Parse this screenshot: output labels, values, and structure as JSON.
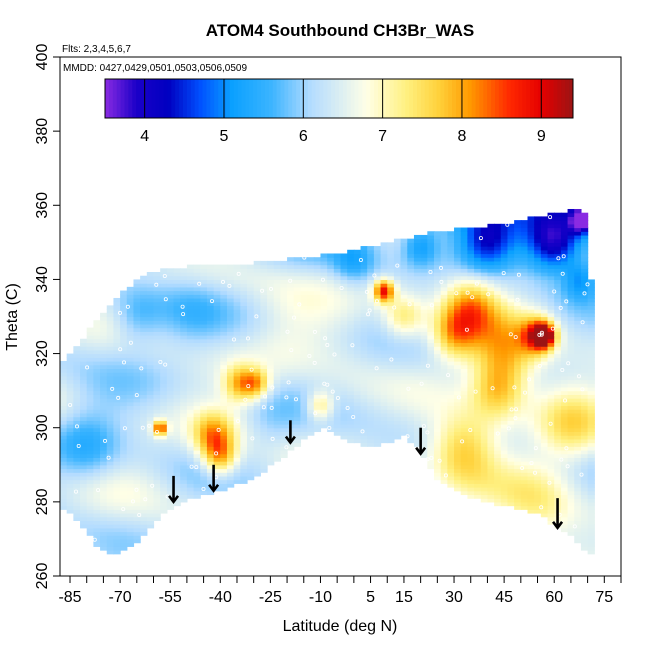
{
  "chart_data": {
    "type": "heatmap",
    "title": "ATOM4 Southbound CH3Br_WAS",
    "flights_note": "Flts: 2,3,4,5,6,7",
    "dates_note": "MMDD: 0427,0429,0501,0503,0506,0509",
    "xlabel": "Latitude (deg N)",
    "ylabel": "Theta (C)",
    "xlim": [
      -88,
      80
    ],
    "ylim": [
      260,
      400
    ],
    "x_ticks": [
      -85,
      -70,
      -55,
      -40,
      -25,
      -10,
      5,
      15,
      30,
      45,
      60,
      75
    ],
    "y_ticks": [
      260,
      280,
      300,
      320,
      340,
      360,
      380,
      400
    ],
    "colorbar": {
      "range": [
        3.5,
        9.4
      ],
      "ticks": [
        4,
        5,
        6,
        7,
        8,
        9
      ],
      "stops": [
        {
          "v": 3.5,
          "c": "#8a2be2"
        },
        {
          "v": 3.9,
          "c": "#1a00c8"
        },
        {
          "v": 4.3,
          "c": "#0000c0"
        },
        {
          "v": 4.7,
          "c": "#0050ff"
        },
        {
          "v": 5.1,
          "c": "#0aa0ff"
        },
        {
          "v": 5.6,
          "c": "#3cb4ff"
        },
        {
          "v": 6.1,
          "c": "#b4dcff"
        },
        {
          "v": 6.8,
          "c": "#ffffe6"
        },
        {
          "v": 7.3,
          "c": "#fff080"
        },
        {
          "v": 7.7,
          "c": "#ffd23c"
        },
        {
          "v": 8.1,
          "c": "#ff9a00"
        },
        {
          "v": 8.6,
          "c": "#ff2800"
        },
        {
          "v": 9.0,
          "c": "#e60000"
        },
        {
          "v": 9.4,
          "c": "#9b1414"
        }
      ]
    },
    "grid": false,
    "legend": "colorbar top",
    "coverage_top": [
      [
        -88,
        317
      ],
      [
        -85,
        320
      ],
      [
        -82,
        323
      ],
      [
        -78,
        328
      ],
      [
        -74,
        332
      ],
      [
        -70,
        336
      ],
      [
        -65,
        340
      ],
      [
        -60,
        342
      ],
      [
        -55,
        343
      ],
      [
        -45,
        344
      ],
      [
        -35,
        344
      ],
      [
        -25,
        345
      ],
      [
        -15,
        346
      ],
      [
        -5,
        347
      ],
      [
        5,
        349
      ],
      [
        15,
        351
      ],
      [
        25,
        353
      ],
      [
        35,
        354
      ],
      [
        45,
        355
      ],
      [
        55,
        357
      ],
      [
        62,
        358
      ],
      [
        66,
        359
      ],
      [
        68,
        359
      ],
      [
        70,
        358
      ],
      [
        71,
        340
      ],
      [
        72,
        290
      ],
      [
        72,
        265
      ]
    ],
    "coverage_bottom": [
      [
        72,
        265
      ],
      [
        66,
        270
      ],
      [
        55,
        277
      ],
      [
        40,
        280
      ],
      [
        30,
        283
      ],
      [
        25,
        286
      ],
      [
        20,
        294
      ],
      [
        15,
        298
      ],
      [
        10,
        296
      ],
      [
        5,
        295
      ],
      [
        0,
        296
      ],
      [
        -5,
        298
      ],
      [
        -10,
        300
      ],
      [
        -15,
        297
      ],
      [
        -20,
        293
      ],
      [
        -25,
        290
      ],
      [
        -30,
        286
      ],
      [
        -35,
        285
      ],
      [
        -40,
        283
      ],
      [
        -45,
        282
      ],
      [
        -52,
        280
      ],
      [
        -58,
        276
      ],
      [
        -62,
        272
      ],
      [
        -66,
        268
      ],
      [
        -70,
        266
      ],
      [
        -74,
        266
      ],
      [
        -77,
        268
      ],
      [
        -80,
        272
      ],
      [
        -84,
        276
      ],
      [
        -88,
        279
      ]
    ],
    "hotspots": [
      {
        "x": 9,
        "y": 337,
        "v": 8.9,
        "r": 3
      },
      {
        "x": 57,
        "y": 325,
        "v": 9.1,
        "r": 3
      },
      {
        "x": 35,
        "y": 333,
        "v": 7.9,
        "r": 8
      },
      {
        "x": 30,
        "y": 325,
        "v": 7.8,
        "r": 7
      },
      {
        "x": 45,
        "y": 320,
        "v": 7.9,
        "r": 10
      },
      {
        "x": 55,
        "y": 325,
        "v": 8.3,
        "r": 5
      },
      {
        "x": 33,
        "y": 295,
        "v": 7.8,
        "r": 10
      },
      {
        "x": 43,
        "y": 310,
        "v": 7.6,
        "r": 8
      },
      {
        "x": -42,
        "y": 298,
        "v": 8.0,
        "r": 6
      },
      {
        "x": -40,
        "y": 292,
        "v": 7.9,
        "r": 5
      },
      {
        "x": -34,
        "y": 312,
        "v": 7.9,
        "r": 5
      },
      {
        "x": -29,
        "y": 312,
        "v": 7.7,
        "r": 4
      },
      {
        "x": -58,
        "y": 300,
        "v": 8.7,
        "r": 2
      },
      {
        "x": -10,
        "y": 306,
        "v": 7.6,
        "r": 4
      },
      {
        "x": 15,
        "y": 330,
        "v": 7.5,
        "r": 6
      },
      {
        "x": 65,
        "y": 300,
        "v": 7.4,
        "r": 10
      },
      {
        "x": 55,
        "y": 280,
        "v": 7.2,
        "r": 12
      },
      {
        "x": -5,
        "y": 325,
        "v": 6.5,
        "r": 15
      },
      {
        "x": -70,
        "y": 315,
        "v": 6.3,
        "r": 15
      },
      {
        "x": -20,
        "y": 325,
        "v": 6.6,
        "r": 12
      },
      {
        "x": 60,
        "y": 350,
        "v": 4.4,
        "r": 8
      },
      {
        "x": 40,
        "y": 350,
        "v": 5.0,
        "r": 8
      },
      {
        "x": 68,
        "y": 356,
        "v": 4.1,
        "r": 3
      },
      {
        "x": 68,
        "y": 340,
        "v": 5.3,
        "r": 5
      },
      {
        "x": -80,
        "y": 295,
        "v": 5.6,
        "r": 10
      },
      {
        "x": -65,
        "y": 330,
        "v": 5.6,
        "r": 8
      },
      {
        "x": 0,
        "y": 345,
        "v": 5.6,
        "r": 6
      },
      {
        "x": 20,
        "y": 349,
        "v": 5.4,
        "r": 5
      },
      {
        "x": -50,
        "y": 330,
        "v": 6.0,
        "r": 10
      },
      {
        "x": 10,
        "y": 310,
        "v": 6.2,
        "r": 12
      },
      {
        "x": -25,
        "y": 300,
        "v": 6.1,
        "r": 8
      }
    ],
    "arrows": [
      {
        "x": -54,
        "y_tail": 287,
        "y_head": 280
      },
      {
        "x": -42,
        "y_tail": 290,
        "y_head": 283
      },
      {
        "x": -19,
        "y_tail": 302,
        "y_head": 296
      },
      {
        "x": 20,
        "y_tail": 300,
        "y_head": 293
      },
      {
        "x": 61,
        "y_tail": 281,
        "y_head": 273
      }
    ]
  }
}
